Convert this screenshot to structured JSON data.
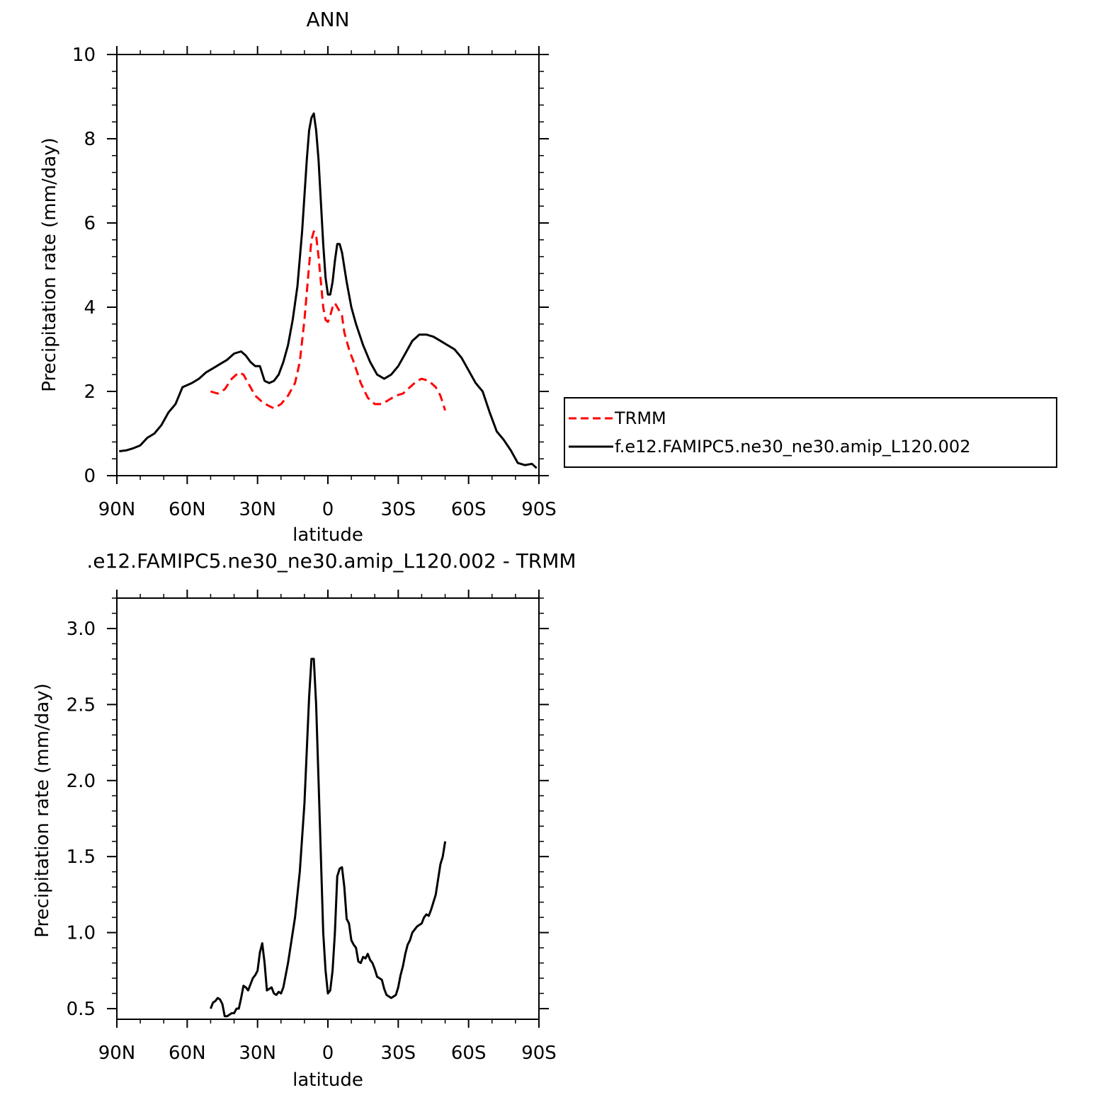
{
  "colors": {
    "model": "#000000",
    "obs": "#ff0000"
  },
  "chart_data": [
    {
      "type": "line",
      "title": "ANN",
      "xlabel": "latitude",
      "ylabel": "Precipitation rate (mm/day)",
      "xlim": [
        90,
        -90
      ],
      "ylim": [
        0,
        10
      ],
      "xticks": [
        90,
        60,
        30,
        0,
        -30,
        -60,
        -90
      ],
      "xtick_labels": [
        "90N",
        "60N",
        "30N",
        "0",
        "30S",
        "60S",
        "90S"
      ],
      "yticks": [
        0,
        2,
        4,
        6,
        8,
        10
      ],
      "ytick_labels": [
        "0",
        "2",
        "4",
        "6",
        "8",
        "10"
      ],
      "grid": false,
      "legend": "right",
      "series": [
        {
          "name": "TRMM",
          "style": "dashed",
          "x": [
            50,
            47,
            44,
            41,
            38,
            36,
            34,
            31,
            28,
            25,
            23,
            20,
            17,
            14,
            12,
            10,
            8,
            7,
            6,
            5,
            4,
            3,
            2,
            1,
            0,
            -1,
            -2,
            -3,
            -4,
            -5,
            -6,
            -7,
            -9,
            -11,
            -14,
            -17,
            -20,
            -23,
            -26,
            -29,
            -32,
            -35,
            -38,
            -40,
            -43,
            -46,
            -48,
            -50
          ],
          "values": [
            2.0,
            1.95,
            2.05,
            2.3,
            2.45,
            2.4,
            2.2,
            1.9,
            1.75,
            1.65,
            1.6,
            1.7,
            1.9,
            2.2,
            2.7,
            3.7,
            5.0,
            5.6,
            5.8,
            5.7,
            5.2,
            4.6,
            4.0,
            3.7,
            3.65,
            3.8,
            4.0,
            4.1,
            4.0,
            3.9,
            3.8,
            3.4,
            3.0,
            2.7,
            2.2,
            1.85,
            1.7,
            1.7,
            1.8,
            1.9,
            1.95,
            2.1,
            2.25,
            2.3,
            2.25,
            2.1,
            1.9,
            1.55
          ]
        },
        {
          "name": "f.e12.FAMIPC5.ne30_ne30.amip_L120.002",
          "style": "solid",
          "x": [
            89,
            86,
            83,
            80,
            77,
            74,
            71,
            68,
            65,
            62,
            60,
            58,
            55,
            52,
            49,
            46,
            43,
            40,
            37,
            35,
            33,
            31,
            29,
            27,
            25,
            23,
            21,
            19,
            17,
            15,
            13,
            11,
            9,
            8,
            7,
            6,
            5,
            4,
            3,
            2,
            1,
            0,
            -1,
            -2,
            -3,
            -4,
            -5,
            -6,
            -8,
            -10,
            -12,
            -15,
            -18,
            -21,
            -24,
            -27,
            -30,
            -33,
            -36,
            -39,
            -42,
            -45,
            -48,
            -51,
            -54,
            -57,
            -60,
            -63,
            -66,
            -69,
            -72,
            -75,
            -78,
            -81,
            -84,
            -87,
            -89
          ],
          "values": [
            0.58,
            0.6,
            0.65,
            0.72,
            0.9,
            1.0,
            1.2,
            1.5,
            1.7,
            2.1,
            2.15,
            2.2,
            2.3,
            2.45,
            2.55,
            2.65,
            2.75,
            2.9,
            2.95,
            2.85,
            2.7,
            2.6,
            2.6,
            2.25,
            2.2,
            2.25,
            2.4,
            2.7,
            3.1,
            3.7,
            4.5,
            5.8,
            7.5,
            8.2,
            8.5,
            8.6,
            8.2,
            7.5,
            6.5,
            5.5,
            4.7,
            4.3,
            4.3,
            4.6,
            5.1,
            5.5,
            5.5,
            5.3,
            4.6,
            4.0,
            3.6,
            3.1,
            2.7,
            2.4,
            2.3,
            2.4,
            2.6,
            2.9,
            3.2,
            3.35,
            3.35,
            3.3,
            3.2,
            3.1,
            3.0,
            2.8,
            2.5,
            2.2,
            2.0,
            1.5,
            1.05,
            0.85,
            0.6,
            0.3,
            0.25,
            0.28,
            0.18
          ]
        }
      ]
    },
    {
      "type": "line",
      "title": ".e12.FAMIPC5.ne30_ne30.amip_L120.002 - TRMM",
      "xlabel": "latitude",
      "ylabel": "Precipitation rate (mm/day)",
      "xlim": [
        90,
        -90
      ],
      "ylim": [
        0.43,
        3.2
      ],
      "xticks": [
        90,
        60,
        30,
        0,
        -30,
        -60,
        -90
      ],
      "xtick_labels": [
        "90N",
        "60N",
        "30N",
        "0",
        "30S",
        "60S",
        "90S"
      ],
      "yticks": [
        0.5,
        1.0,
        1.5,
        2.0,
        2.5,
        3.0
      ],
      "ytick_labels": [
        "0.5",
        "1.0",
        "1.5",
        "2.0",
        "2.5",
        "3.0"
      ],
      "grid": false,
      "series": [
        {
          "style": "solid",
          "x": [
            50,
            49,
            48,
            47,
            46,
            45,
            44,
            43,
            42,
            41,
            40,
            39,
            38,
            37,
            36,
            35,
            34,
            33,
            32,
            31,
            30,
            29,
            28,
            27,
            26,
            25,
            24,
            23,
            22,
            21,
            20,
            19,
            18,
            17,
            16,
            14,
            12,
            10,
            9,
            8,
            7,
            6,
            5,
            4,
            3,
            2,
            1,
            0,
            -1,
            -2,
            -3,
            -4,
            -5,
            -6,
            -7,
            -8,
            -9,
            -10,
            -11,
            -12,
            -13,
            -14,
            -15,
            -16,
            -17,
            -18,
            -19,
            -20,
            -21,
            -22,
            -23,
            -24,
            -25,
            -26,
            -27,
            -28,
            -29,
            -30,
            -31,
            -32,
            -33,
            -34,
            -35,
            -36,
            -37,
            -38,
            -39,
            -40,
            -41,
            -42,
            -43,
            -44,
            -45,
            -46,
            -47,
            -48,
            -49,
            -50
          ],
          "values": [
            0.5,
            0.54,
            0.55,
            0.57,
            0.56,
            0.53,
            0.45,
            0.45,
            0.46,
            0.47,
            0.47,
            0.5,
            0.5,
            0.57,
            0.65,
            0.64,
            0.62,
            0.66,
            0.7,
            0.72,
            0.75,
            0.87,
            0.93,
            0.8,
            0.62,
            0.63,
            0.64,
            0.6,
            0.59,
            0.61,
            0.6,
            0.64,
            0.72,
            0.8,
            0.9,
            1.1,
            1.4,
            1.85,
            2.2,
            2.55,
            2.8,
            2.8,
            2.5,
            2.0,
            1.5,
            1.0,
            0.75,
            0.6,
            0.62,
            0.75,
            1.0,
            1.37,
            1.42,
            1.43,
            1.3,
            1.09,
            1.06,
            0.95,
            0.92,
            0.9,
            0.81,
            0.8,
            0.84,
            0.83,
            0.86,
            0.82,
            0.8,
            0.76,
            0.71,
            0.7,
            0.69,
            0.63,
            0.59,
            0.58,
            0.57,
            0.58,
            0.59,
            0.64,
            0.72,
            0.78,
            0.86,
            0.92,
            0.95,
            1.0,
            1.02,
            1.04,
            1.05,
            1.06,
            1.1,
            1.12,
            1.11,
            1.15,
            1.2,
            1.25,
            1.35,
            1.45,
            1.5,
            1.6
          ]
        }
      ]
    }
  ]
}
